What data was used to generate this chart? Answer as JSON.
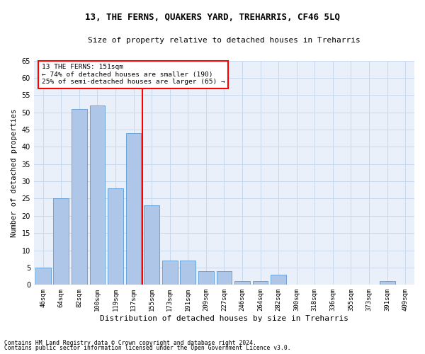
{
  "title": "13, THE FERNS, QUAKERS YARD, TREHARRIS, CF46 5LQ",
  "subtitle": "Size of property relative to detached houses in Treharris",
  "xlabel": "Distribution of detached houses by size in Treharris",
  "ylabel": "Number of detached properties",
  "categories": [
    "46sqm",
    "64sqm",
    "82sqm",
    "100sqm",
    "119sqm",
    "137sqm",
    "155sqm",
    "173sqm",
    "191sqm",
    "209sqm",
    "227sqm",
    "246sqm",
    "264sqm",
    "282sqm",
    "300sqm",
    "318sqm",
    "336sqm",
    "355sqm",
    "373sqm",
    "391sqm",
    "409sqm"
  ],
  "values": [
    5,
    25,
    51,
    52,
    28,
    44,
    23,
    7,
    7,
    4,
    4,
    1,
    1,
    3,
    0,
    0,
    0,
    0,
    0,
    1,
    0
  ],
  "bar_color": "#AEC6E8",
  "bar_edge_color": "#5B9BD5",
  "highlight_index": 6,
  "annotation_line1": "13 THE FERNS: 151sqm",
  "annotation_line2": "← 74% of detached houses are smaller (190)",
  "annotation_line3": "25% of semi-detached houses are larger (65) →",
  "ylim": [
    0,
    65
  ],
  "yticks": [
    0,
    5,
    10,
    15,
    20,
    25,
    30,
    35,
    40,
    45,
    50,
    55,
    60,
    65
  ],
  "footer_line1": "Contains HM Land Registry data © Crown copyright and database right 2024.",
  "footer_line2": "Contains public sector information licensed under the Open Government Licence v3.0.",
  "bg_color": "#FFFFFF",
  "plot_bg_color": "#EAF0FA",
  "grid_color": "#C8D8EC"
}
